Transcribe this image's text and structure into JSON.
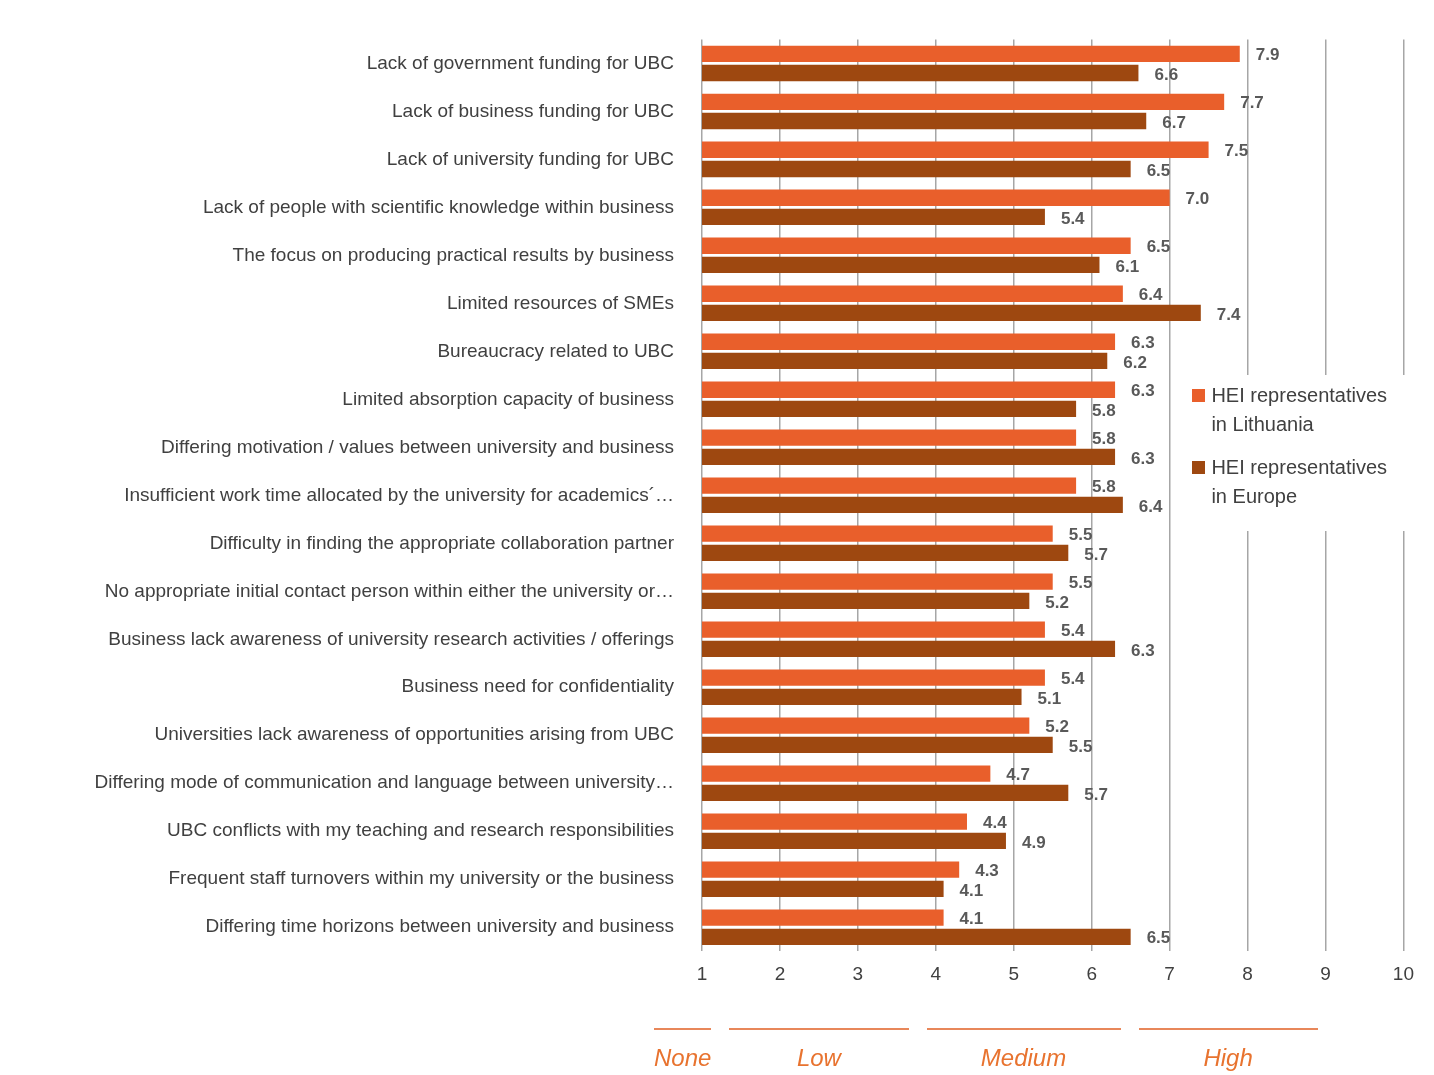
{
  "chart_data": {
    "type": "bar",
    "orientation": "horizontal",
    "categories": [
      "Lack of government funding for UBC",
      "Lack of business funding for UBC",
      "Lack of university funding for UBC",
      "Lack of people with scientific knowledge within business",
      "The focus on producing practical results by business",
      "Limited resources of SMEs",
      "Bureaucracy related to UBC",
      "Limited absorption capacity of business",
      "Differing motivation / values between university and business",
      "Insufficient work time allocated by the university for academics´…",
      "Difficulty in finding the appropriate collaboration partner",
      "No appropriate initial contact person within either the university or…",
      "Business lack awareness of university research activities / offerings",
      "Business need for confidentiality",
      "Universities lack awareness of opportunities arising from UBC",
      "Differing mode of communication and language between university…",
      "UBC conflicts with my teaching and research responsibilities",
      "Frequent staff turnovers within my university or the business",
      "Differing time horizons between university and business"
    ],
    "series": [
      {
        "name": "HEI representatives in Lithuania",
        "color": "#e95f2b",
        "values": [
          7.9,
          7.7,
          7.5,
          7.0,
          6.5,
          6.4,
          6.3,
          6.3,
          5.8,
          5.8,
          5.5,
          5.5,
          5.4,
          5.4,
          5.2,
          4.7,
          4.4,
          4.3,
          4.1
        ],
        "value_labels": [
          "7.9",
          "7.7",
          "7.5",
          "7.0",
          "6.5",
          "6.4",
          "6.3",
          "6.3",
          "5.8",
          "5.8",
          "5.5",
          "5.5",
          "5.4",
          "5.4",
          "5.2",
          "4.7",
          "4.4",
          "4.3",
          "4.1"
        ]
      },
      {
        "name": "HEI representatives in Europe",
        "color": "#9e4810",
        "values": [
          6.6,
          6.7,
          6.5,
          5.4,
          6.1,
          7.4,
          6.2,
          5.8,
          6.3,
          6.4,
          5.7,
          5.2,
          6.3,
          5.1,
          5.5,
          5.7,
          4.9,
          4.1,
          6.5
        ],
        "value_labels": [
          "6.6",
          "6.7",
          "6.5",
          "5.4",
          "6.1",
          "7.4",
          "6.2",
          "5.8",
          "6.3",
          "6.4",
          "5.7",
          "5.2",
          "6.3",
          "5.1",
          "5.5",
          "5.7",
          "4.9",
          "4.1",
          "6.5"
        ]
      }
    ],
    "xlim": [
      1,
      10
    ],
    "xticks": [
      1,
      2,
      3,
      4,
      5,
      6,
      7,
      8,
      9,
      10
    ],
    "grid": "x",
    "legend": "right",
    "annotations": [
      "None",
      "Low",
      "Medium",
      "High"
    ]
  }
}
